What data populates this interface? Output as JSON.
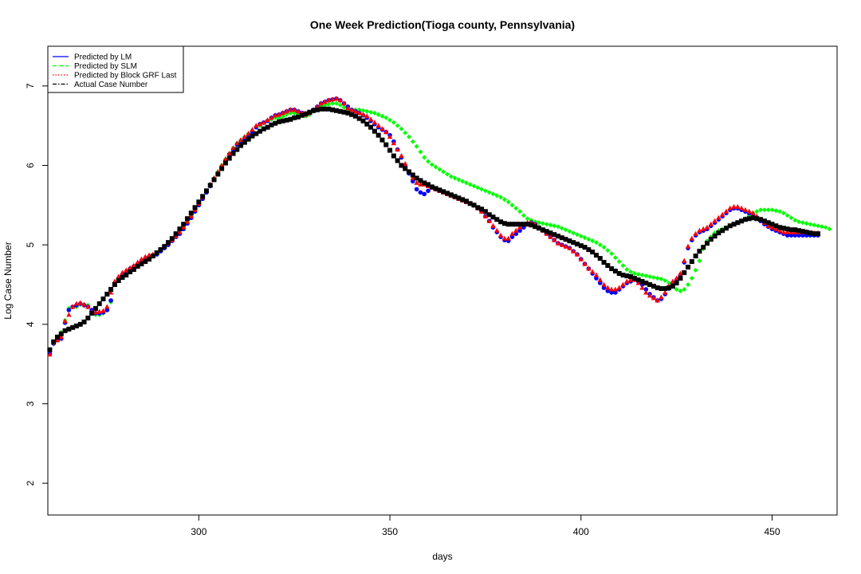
{
  "chart_data": {
    "type": "scatter",
    "title": "One Week Prediction(Tioga county, Pennsylvania)",
    "xlabel": "days",
    "ylabel": "Log Case Number",
    "xlim": [
      260.5,
      467
    ],
    "ylim": [
      1.6,
      7.5
    ],
    "xticks": [
      300,
      350,
      400,
      450
    ],
    "yticks": [
      2,
      3,
      4,
      5,
      6,
      7
    ],
    "grid": false,
    "legend_position": "top-left",
    "x_start": 261,
    "series": [
      {
        "name": "Actual Case Number",
        "color": "#000000",
        "marker": "square",
        "values": [
          3.68,
          3.78,
          3.84,
          3.88,
          3.92,
          3.94,
          3.96,
          3.98,
          4.0,
          4.03,
          4.08,
          4.14,
          4.2,
          4.26,
          4.32,
          4.38,
          4.44,
          4.5,
          4.55,
          4.59,
          4.62,
          4.66,
          4.69,
          4.73,
          4.76,
          4.79,
          4.82,
          4.86,
          4.9,
          4.94,
          4.98,
          5.03,
          5.08,
          5.14,
          5.2,
          5.26,
          5.33,
          5.4,
          5.47,
          5.54,
          5.61,
          5.68,
          5.75,
          5.82,
          5.89,
          5.96,
          6.03,
          6.09,
          6.15,
          6.2,
          6.25,
          6.29,
          6.33,
          6.37,
          6.4,
          6.43,
          6.46,
          6.48,
          6.51,
          6.53,
          6.55,
          6.56,
          6.57,
          6.58,
          6.6,
          6.61,
          6.63,
          6.65,
          6.67,
          6.69,
          6.7,
          6.71,
          6.71,
          6.71,
          6.7,
          6.69,
          6.68,
          6.67,
          6.66,
          6.64,
          6.62,
          6.59,
          6.56,
          6.52,
          6.48,
          6.43,
          6.38,
          6.32,
          6.26,
          6.19,
          6.12,
          6.06,
          6.0,
          5.96,
          5.92,
          5.88,
          5.84,
          5.81,
          5.78,
          5.76,
          5.73,
          5.71,
          5.69,
          5.67,
          5.65,
          5.63,
          5.61,
          5.59,
          5.57,
          5.55,
          5.52,
          5.5,
          5.47,
          5.45,
          5.42,
          5.38,
          5.35,
          5.32,
          5.29,
          5.27,
          5.26,
          5.26,
          5.26,
          5.26,
          5.26,
          5.26,
          5.25,
          5.23,
          5.21,
          5.19,
          5.17,
          5.15,
          5.13,
          5.11,
          5.09,
          5.07,
          5.05,
          5.03,
          5.01,
          4.99,
          4.97,
          4.94,
          4.91,
          4.87,
          4.83,
          4.78,
          4.74,
          4.7,
          4.67,
          4.64,
          4.62,
          4.61,
          4.6,
          4.58,
          4.56,
          4.54,
          4.52,
          4.5,
          4.48,
          4.46,
          4.45,
          4.45,
          4.46,
          4.48,
          4.52,
          4.58,
          4.65,
          4.72,
          4.79,
          4.86,
          4.92,
          4.97,
          5.02,
          5.07,
          5.11,
          5.15,
          5.18,
          5.21,
          5.24,
          5.26,
          5.28,
          5.3,
          5.32,
          5.33,
          5.34,
          5.33,
          5.32,
          5.3,
          5.28,
          5.26,
          5.24,
          5.22,
          5.21,
          5.2,
          5.19,
          5.19,
          5.18,
          5.17,
          5.16,
          5.15,
          5.14,
          5.14
        ]
      },
      {
        "name": "Predicted by SLM",
        "color": "#00ff00",
        "marker": "diamond",
        "values": [
          3.65,
          3.75,
          3.82,
          3.9,
          4.05,
          4.2,
          4.22,
          4.22,
          4.25,
          4.25,
          4.24,
          4.15,
          4.12,
          4.12,
          4.14,
          4.2,
          4.28,
          4.52,
          4.58,
          4.62,
          4.67,
          4.7,
          4.72,
          4.76,
          4.78,
          4.8,
          4.83,
          4.86,
          4.89,
          4.93,
          4.97,
          5.01,
          5.05,
          5.1,
          5.15,
          5.22,
          5.29,
          5.36,
          5.44,
          5.52,
          5.6,
          5.68,
          5.76,
          5.84,
          5.92,
          6.0,
          6.08,
          6.15,
          6.22,
          6.28,
          6.32,
          6.36,
          6.4,
          6.44,
          6.48,
          6.5,
          6.53,
          6.56,
          6.58,
          6.6,
          6.6,
          6.62,
          6.64,
          6.66,
          6.66,
          6.65,
          6.64,
          6.62,
          6.64,
          6.68,
          6.72,
          6.75,
          6.76,
          6.77,
          6.78,
          6.78,
          6.76,
          6.73,
          6.71,
          6.7,
          6.7,
          6.7,
          6.69,
          6.68,
          6.67,
          6.66,
          6.64,
          6.62,
          6.6,
          6.57,
          6.54,
          6.5,
          6.46,
          6.41,
          6.36,
          6.3,
          6.24,
          6.17,
          6.1,
          6.05,
          6.01,
          5.98,
          5.95,
          5.92,
          5.89,
          5.86,
          5.84,
          5.82,
          5.8,
          5.78,
          5.76,
          5.74,
          5.72,
          5.7,
          5.68,
          5.66,
          5.64,
          5.62,
          5.6,
          5.57,
          5.54,
          5.5,
          5.46,
          5.42,
          5.37,
          5.33,
          5.31,
          5.29,
          5.28,
          5.27,
          5.26,
          5.25,
          5.24,
          5.23,
          5.21,
          5.19,
          5.17,
          5.15,
          5.13,
          5.11,
          5.09,
          5.07,
          5.05,
          5.03,
          5.0,
          4.97,
          4.93,
          4.89,
          4.84,
          4.79,
          4.74,
          4.69,
          4.66,
          4.64,
          4.63,
          4.62,
          4.61,
          4.6,
          4.59,
          4.58,
          4.57,
          4.55,
          4.52,
          4.48,
          4.44,
          4.42,
          4.44,
          4.5,
          4.58,
          4.68,
          4.8,
          4.95,
          5.05,
          5.1,
          5.15,
          5.18,
          5.2,
          5.22,
          5.24,
          5.26,
          5.28,
          5.3,
          5.33,
          5.37,
          5.4,
          5.42,
          5.44,
          5.44,
          5.44,
          5.44,
          5.43,
          5.42,
          5.4,
          5.37,
          5.34,
          5.31,
          5.29,
          5.28,
          5.27,
          5.26,
          5.25,
          5.24,
          5.23,
          5.22,
          5.2
        ]
      },
      {
        "name": "Predicted by LM",
        "color": "#0000ff",
        "marker": "circle",
        "values": [
          3.63,
          3.76,
          3.8,
          3.82,
          4.02,
          4.18,
          4.22,
          4.24,
          4.26,
          4.24,
          4.22,
          4.18,
          4.14,
          4.14,
          4.15,
          4.18,
          4.3,
          4.52,
          4.58,
          4.62,
          4.66,
          4.7,
          4.73,
          4.76,
          4.8,
          4.83,
          4.85,
          4.86,
          4.88,
          4.92,
          4.96,
          5.0,
          5.05,
          5.1,
          5.14,
          5.2,
          5.27,
          5.34,
          5.42,
          5.5,
          5.58,
          5.66,
          5.74,
          5.82,
          5.9,
          5.98,
          6.06,
          6.14,
          6.2,
          6.26,
          6.3,
          6.34,
          6.38,
          6.42,
          6.48,
          6.52,
          6.54,
          6.56,
          6.6,
          6.63,
          6.64,
          6.66,
          6.68,
          6.7,
          6.7,
          6.68,
          6.66,
          6.64,
          6.66,
          6.7,
          6.74,
          6.78,
          6.8,
          6.82,
          6.83,
          6.84,
          6.82,
          6.78,
          6.74,
          6.7,
          6.68,
          6.66,
          6.63,
          6.6,
          6.56,
          6.52,
          6.48,
          6.45,
          6.42,
          6.38,
          6.3,
          6.2,
          6.1,
          6.0,
          5.9,
          5.8,
          5.7,
          5.66,
          5.64,
          5.68,
          5.72,
          5.7,
          5.68,
          5.66,
          5.64,
          5.62,
          5.6,
          5.58,
          5.56,
          5.54,
          5.52,
          5.5,
          5.46,
          5.42,
          5.36,
          5.3,
          5.22,
          5.16,
          5.1,
          5.06,
          5.05,
          5.1,
          5.14,
          5.18,
          5.22,
          5.26,
          5.28,
          5.26,
          5.22,
          5.18,
          5.14,
          5.1,
          5.06,
          5.02,
          5.0,
          4.98,
          4.96,
          4.92,
          4.88,
          4.82,
          4.76,
          4.7,
          4.64,
          4.58,
          4.52,
          4.46,
          4.42,
          4.4,
          4.4,
          4.44,
          4.48,
          4.52,
          4.54,
          4.56,
          4.54,
          4.5,
          4.44,
          4.38,
          4.34,
          4.3,
          4.32,
          4.38,
          4.45,
          4.52,
          4.56,
          4.62,
          4.78,
          4.96,
          5.06,
          5.12,
          5.16,
          5.18,
          5.2,
          5.24,
          5.28,
          5.32,
          5.36,
          5.4,
          5.44,
          5.46,
          5.46,
          5.44,
          5.42,
          5.4,
          5.38,
          5.34,
          5.3,
          5.26,
          5.23,
          5.2,
          5.18,
          5.16,
          5.14,
          5.12,
          5.12,
          5.12,
          5.12,
          5.12,
          5.12,
          5.12,
          5.12,
          5.12
        ]
      },
      {
        "name": "Predicted by Block GRF Last",
        "color": "#ff0000",
        "marker": "triangle",
        "values": [
          3.62,
          3.77,
          3.8,
          3.84,
          4.04,
          4.12,
          4.22,
          4.26,
          4.27,
          4.25,
          4.22,
          4.16,
          4.15,
          4.16,
          4.17,
          4.22,
          4.4,
          4.54,
          4.6,
          4.65,
          4.68,
          4.71,
          4.74,
          4.78,
          4.82,
          4.85,
          4.87,
          4.88,
          4.9,
          4.94,
          4.98,
          5.02,
          5.06,
          5.11,
          5.16,
          5.22,
          5.29,
          5.36,
          5.44,
          5.52,
          5.6,
          5.68,
          5.76,
          5.84,
          5.92,
          6.0,
          6.08,
          6.15,
          6.22,
          6.28,
          6.32,
          6.36,
          6.4,
          6.45,
          6.5,
          6.52,
          6.54,
          6.57,
          6.6,
          6.63,
          6.64,
          6.66,
          6.68,
          6.7,
          6.7,
          6.68,
          6.66,
          6.64,
          6.66,
          6.7,
          6.74,
          6.78,
          6.8,
          6.82,
          6.83,
          6.84,
          6.82,
          6.78,
          6.72,
          6.7,
          6.68,
          6.66,
          6.64,
          6.62,
          6.58,
          6.54,
          6.5,
          6.46,
          6.42,
          6.36,
          6.28,
          6.2,
          6.12,
          6.02,
          5.92,
          5.84,
          5.78,
          5.76,
          5.76,
          5.74,
          5.72,
          5.7,
          5.68,
          5.66,
          5.64,
          5.62,
          5.6,
          5.58,
          5.56,
          5.54,
          5.52,
          5.5,
          5.46,
          5.42,
          5.36,
          5.3,
          5.24,
          5.18,
          5.12,
          5.08,
          5.08,
          5.14,
          5.18,
          5.22,
          5.26,
          5.28,
          5.28,
          5.26,
          5.22,
          5.18,
          5.14,
          5.1,
          5.06,
          5.02,
          5.0,
          4.98,
          4.96,
          4.92,
          4.88,
          4.82,
          4.76,
          4.7,
          4.66,
          4.62,
          4.56,
          4.5,
          4.46,
          4.44,
          4.44,
          4.46,
          4.5,
          4.54,
          4.56,
          4.56,
          4.52,
          4.46,
          4.4,
          4.36,
          4.33,
          4.3,
          4.34,
          4.4,
          4.48,
          4.54,
          4.58,
          4.64,
          4.8,
          4.98,
          5.08,
          5.14,
          5.18,
          5.2,
          5.22,
          5.26,
          5.3,
          5.34,
          5.38,
          5.42,
          5.46,
          5.48,
          5.48,
          5.46,
          5.44,
          5.42,
          5.4,
          5.36,
          5.32,
          5.28,
          5.24,
          5.22,
          5.2,
          5.18,
          5.16,
          5.16,
          5.16,
          5.16,
          5.16,
          5.16,
          5.16,
          5.15,
          5.15,
          5.15
        ]
      }
    ],
    "legend": [
      {
        "label": "Predicted by LM",
        "color": "#0000ff",
        "dash": "solid"
      },
      {
        "label": "Predicted by SLM",
        "color": "#00ff00",
        "dash": "dashed"
      },
      {
        "label": "Predicted by Block GRF Last",
        "color": "#ff0000",
        "dash": "dotted"
      },
      {
        "label": "Actual Case Number",
        "color": "#000000",
        "dash": "dashdot"
      }
    ]
  }
}
